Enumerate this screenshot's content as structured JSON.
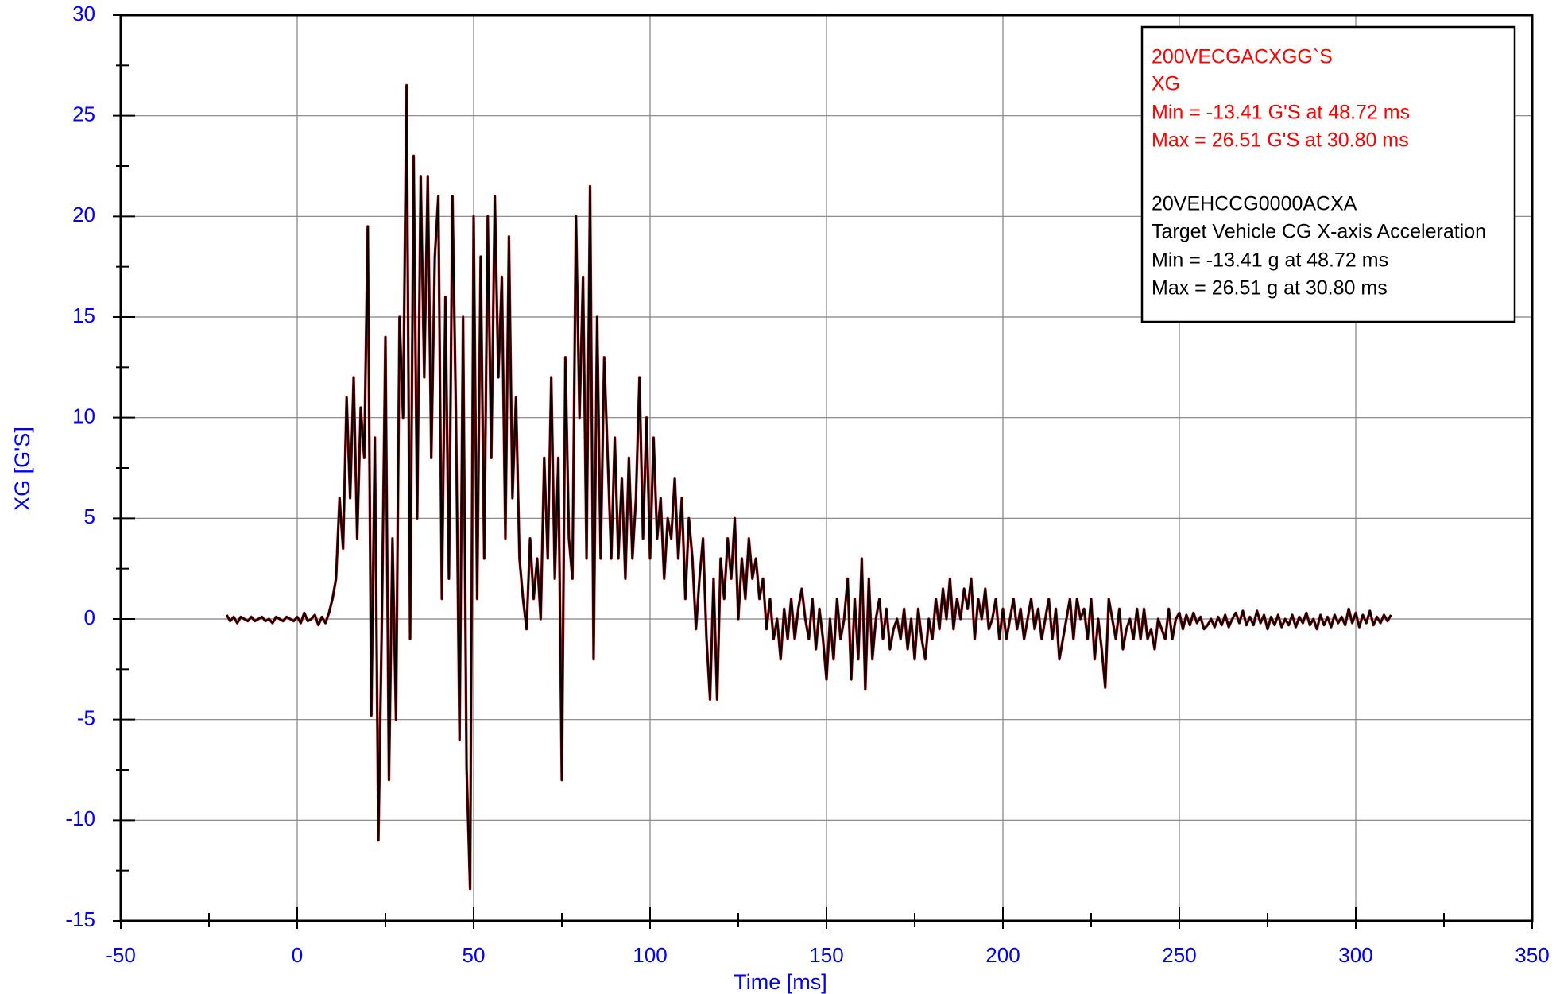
{
  "chart_data": {
    "type": "line",
    "xlabel": "Time [ms]",
    "ylabel": "XG  [G'S]",
    "xlim": [
      -50,
      350
    ],
    "ylim": [
      -15,
      30
    ],
    "xticks": [
      -50,
      0,
      50,
      100,
      150,
      200,
      250,
      300,
      350
    ],
    "yticks": [
      -15,
      -10,
      -5,
      0,
      5,
      10,
      15,
      20,
      25,
      30
    ],
    "xminorticks": [
      -25,
      25,
      75,
      125,
      175,
      225,
      275,
      325
    ],
    "yminorticks": [
      -12.5,
      -7.5,
      -2.5,
      2.5,
      7.5,
      12.5,
      17.5,
      22.5,
      27.5
    ],
    "grid": true,
    "x": [
      -20,
      -19,
      -18,
      -17,
      -16,
      -15,
      -14,
      -13,
      -12,
      -11,
      -10,
      -9,
      -8,
      -7,
      -6,
      -5,
      -4,
      -3,
      -2,
      -1,
      0,
      1,
      2,
      3,
      4,
      5,
      6,
      7,
      8,
      9,
      10,
      11,
      12,
      13,
      14,
      15,
      16,
      17,
      18,
      19,
      20,
      21,
      22,
      23,
      24,
      25,
      26,
      27,
      28,
      29,
      30,
      31,
      32,
      33,
      34,
      35,
      36,
      37,
      38,
      39,
      40,
      41,
      42,
      43,
      44,
      45,
      46,
      47,
      48,
      49,
      50,
      51,
      52,
      53,
      54,
      55,
      56,
      57,
      58,
      59,
      60,
      61,
      62,
      63,
      64,
      65,
      66,
      67,
      68,
      69,
      70,
      71,
      72,
      73,
      74,
      75,
      76,
      77,
      78,
      79,
      80,
      81,
      82,
      83,
      84,
      85,
      86,
      87,
      88,
      89,
      90,
      91,
      92,
      93,
      94,
      95,
      96,
      97,
      98,
      99,
      100,
      101,
      102,
      103,
      104,
      105,
      106,
      107,
      108,
      109,
      110,
      111,
      112,
      113,
      114,
      115,
      116,
      117,
      118,
      119,
      120,
      121,
      122,
      123,
      124,
      125,
      126,
      127,
      128,
      129,
      130,
      131,
      132,
      133,
      134,
      135,
      136,
      137,
      138,
      139,
      140,
      141,
      142,
      143,
      144,
      145,
      146,
      147,
      148,
      149,
      150,
      151,
      152,
      153,
      154,
      155,
      156,
      157,
      158,
      159,
      160,
      161,
      162,
      163,
      164,
      165,
      166,
      167,
      168,
      169,
      170,
      171,
      172,
      173,
      174,
      175,
      176,
      177,
      178,
      179,
      180,
      181,
      182,
      183,
      184,
      185,
      186,
      187,
      188,
      189,
      190,
      191,
      192,
      193,
      194,
      195,
      196,
      197,
      198,
      199,
      200,
      201,
      202,
      203,
      204,
      205,
      206,
      207,
      208,
      209,
      210,
      211,
      212,
      213,
      214,
      215,
      216,
      217,
      218,
      219,
      220,
      221,
      222,
      223,
      224,
      225,
      226,
      227,
      228,
      229,
      230,
      231,
      232,
      233,
      234,
      235,
      236,
      237,
      238,
      239,
      240,
      241,
      242,
      243,
      244,
      245,
      246,
      247,
      248,
      249,
      250,
      251,
      252,
      253,
      254,
      255,
      256,
      257,
      258,
      259,
      260,
      261,
      262,
      263,
      264,
      265,
      266,
      267,
      268,
      269,
      270,
      271,
      272,
      273,
      274,
      275,
      276,
      277,
      278,
      279,
      280,
      281,
      282,
      283,
      284,
      285,
      286,
      287,
      288,
      289,
      290,
      291,
      292,
      293,
      294,
      295,
      296,
      297,
      298,
      299,
      300,
      301,
      302,
      303,
      304,
      305,
      306,
      307,
      308,
      309,
      310
    ],
    "series": [
      {
        "name": "200VECGACXGG`S",
        "label": "XG",
        "min_text": "Min = -13.41 G'S at 48.72 ms",
        "max_text": "Max = 26.51 G'S at 30.80 ms",
        "color": "#ff0000",
        "values": [
          0.2,
          -0.1,
          0.1,
          -0.2,
          0.1,
          0,
          -0.1,
          0.1,
          -0.1,
          0,
          0.1,
          -0.1,
          0,
          -0.2,
          0.1,
          0,
          -0.1,
          0.1,
          0,
          -0.1,
          0.1,
          -0.2,
          0.3,
          -0.1,
          0,
          0.2,
          -0.3,
          0.1,
          -0.2,
          0.3,
          1,
          2,
          6,
          3.5,
          11,
          6,
          12,
          4,
          10.5,
          8,
          19.5,
          -4.8,
          9,
          -11,
          0,
          14,
          -8,
          4,
          -5,
          15,
          10,
          26.51,
          -1,
          23,
          5,
          22,
          12,
          22,
          8,
          18,
          21,
          1,
          16,
          2,
          21,
          10,
          -6,
          15,
          -7.4,
          -13.41,
          20,
          1,
          18,
          3,
          20,
          8,
          21,
          12,
          17,
          4,
          19,
          6,
          11,
          3,
          1,
          -0.5,
          4,
          1,
          3,
          0,
          8,
          3,
          12,
          2,
          8,
          -8,
          13,
          4,
          2,
          20,
          10,
          17,
          3,
          21.5,
          -2,
          15,
          3,
          13,
          8,
          3,
          9,
          3,
          7,
          2,
          8,
          3,
          6,
          12,
          4,
          10,
          3,
          9,
          4,
          6,
          2,
          5,
          4,
          7,
          3,
          6,
          1,
          5,
          3,
          -0.5,
          2,
          4,
          -1,
          -4,
          2,
          -4,
          3,
          1,
          4,
          2,
          5,
          0,
          3,
          1,
          4,
          2,
          3,
          1,
          2,
          -0.5,
          1,
          -1,
          0,
          -2,
          0.5,
          -1,
          1,
          -1,
          0.5,
          1.5,
          0,
          -1,
          1,
          -1.5,
          0.5,
          -1,
          -3,
          0,
          -2,
          1,
          -1,
          0,
          2,
          -3,
          1,
          -2,
          3,
          -3.5,
          2,
          -2,
          0,
          1,
          -1,
          0.5,
          -1.5,
          -0.5,
          0,
          -1,
          0.5,
          -1.5,
          0,
          -2,
          0.5,
          -1,
          -2,
          0,
          -1,
          1,
          -0.5,
          1.5,
          0,
          2,
          -0.5,
          1,
          0,
          1.5,
          0.5,
          2,
          -1,
          1,
          0,
          1.5,
          -0.5,
          0,
          1,
          -1,
          0.5,
          -1,
          0,
          1,
          -0.5,
          0.5,
          -1,
          0,
          1,
          -0.5,
          0.5,
          -1,
          0,
          1,
          -1,
          0.5,
          -2,
          -1,
          0,
          1,
          -1,
          1,
          0,
          0.5,
          -1,
          1,
          -2,
          0,
          -1.5,
          -3.4,
          1,
          0,
          -1,
          0.5,
          -1.5,
          -0.5,
          0,
          -1,
          0.5,
          -1,
          0.5,
          -1,
          -0.5,
          -1.5,
          0,
          -0.5,
          -1,
          0.5,
          -1,
          0,
          0.3,
          -0.5,
          0.2,
          -0.3,
          0.3,
          -0.2,
          0.1,
          -0.5,
          -0.3,
          0,
          -0.4,
          0.1,
          -0.3,
          0.2,
          -0.4,
          0,
          0.3,
          -0.2,
          0.4,
          -0.3,
          0.1,
          -0.3,
          0.4,
          -0.2,
          0.2,
          -0.5,
          0.1,
          -0.3,
          0.2,
          -0.4,
          0,
          -0.3,
          0.2,
          -0.4,
          0.1,
          -0.2,
          0.3,
          -0.3,
          0,
          -0.5,
          0.2,
          -0.3,
          0.1,
          -0.4,
          0.2,
          -0.2,
          0.1,
          -0.3,
          0.5,
          -0.2,
          0.3,
          -0.4,
          0.2,
          -0.2,
          0.4,
          -0.3,
          0.1,
          -0.2,
          0.2,
          -0.1,
          0.2
        ]
      },
      {
        "name": "20VEHCCG0000ACXA",
        "label": "Target Vehicle CG X-axis Acceleration",
        "min_text": "Min = -13.41 g at 48.72 ms",
        "max_text": "Max = 26.51 g at 30.80 ms",
        "color": "#000000",
        "values": [
          0.2,
          -0.1,
          0.1,
          -0.2,
          0.1,
          0,
          -0.1,
          0.1,
          -0.1,
          0,
          0.1,
          -0.1,
          0,
          -0.2,
          0.1,
          0,
          -0.1,
          0.1,
          0,
          -0.1,
          0.1,
          -0.2,
          0.3,
          -0.1,
          0,
          0.2,
          -0.3,
          0.1,
          -0.2,
          0.3,
          1,
          2,
          6,
          3.5,
          11,
          6,
          12,
          4,
          10.5,
          8,
          19.5,
          -4.8,
          9,
          -11,
          0,
          14,
          -8,
          4,
          -5,
          15,
          10,
          26.51,
          -1,
          23,
          5,
          22,
          12,
          22,
          8,
          18,
          21,
          1,
          16,
          2,
          21,
          10,
          -6,
          15,
          -7.4,
          -13.41,
          20,
          1,
          18,
          3,
          20,
          8,
          21,
          12,
          17,
          4,
          19,
          6,
          11,
          3,
          1,
          -0.5,
          4,
          1,
          3,
          0,
          8,
          3,
          12,
          2,
          8,
          -8,
          13,
          4,
          2,
          20,
          10,
          17,
          3,
          21.5,
          -2,
          15,
          3,
          13,
          8,
          3,
          9,
          3,
          7,
          2,
          8,
          3,
          6,
          12,
          4,
          10,
          3,
          9,
          4,
          6,
          2,
          5,
          4,
          7,
          3,
          6,
          1,
          5,
          3,
          -0.5,
          2,
          4,
          -1,
          -4,
          2,
          -4,
          3,
          1,
          4,
          2,
          5,
          0,
          3,
          1,
          4,
          2,
          3,
          1,
          2,
          -0.5,
          1,
          -1,
          0,
          -2,
          0.5,
          -1,
          1,
          -1,
          0.5,
          1.5,
          0,
          -1,
          1,
          -1.5,
          0.5,
          -1,
          -3,
          0,
          -2,
          1,
          -1,
          0,
          2,
          -3,
          1,
          -2,
          3,
          -3.5,
          2,
          -2,
          0,
          1,
          -1,
          0.5,
          -1.5,
          -0.5,
          0,
          -1,
          0.5,
          -1.5,
          0,
          -2,
          0.5,
          -1,
          -2,
          0,
          -1,
          1,
          -0.5,
          1.5,
          0,
          2,
          -0.5,
          1,
          0,
          1.5,
          0.5,
          2,
          -1,
          1,
          0,
          1.5,
          -0.5,
          0,
          1,
          -1,
          0.5,
          -1,
          0,
          1,
          -0.5,
          0.5,
          -1,
          0,
          1,
          -0.5,
          0.5,
          -1,
          0,
          1,
          -1,
          0.5,
          -2,
          -1,
          0,
          1,
          -1,
          1,
          0,
          0.5,
          -1,
          1,
          -2,
          0,
          -1.5,
          -3.4,
          1,
          0,
          -1,
          0.5,
          -1.5,
          -0.5,
          0,
          -1,
          0.5,
          -1,
          0.5,
          -1,
          -0.5,
          -1.5,
          0,
          -0.5,
          -1,
          0.5,
          -1,
          0,
          0.3,
          -0.5,
          0.2,
          -0.3,
          0.3,
          -0.2,
          0.1,
          -0.5,
          -0.3,
          0,
          -0.4,
          0.1,
          -0.3,
          0.2,
          -0.4,
          0,
          0.3,
          -0.2,
          0.4,
          -0.3,
          0.1,
          -0.3,
          0.4,
          -0.2,
          0.2,
          -0.5,
          0.1,
          -0.3,
          0.2,
          -0.4,
          0,
          -0.3,
          0.2,
          -0.4,
          0.1,
          -0.2,
          0.3,
          -0.3,
          0,
          -0.5,
          0.2,
          -0.3,
          0.1,
          -0.4,
          0.2,
          -0.2,
          0.1,
          -0.3,
          0.5,
          -0.2,
          0.3,
          -0.4,
          0.2,
          -0.2,
          0.4,
          -0.3,
          0.1,
          -0.2,
          0.2,
          -0.1,
          0.2
        ]
      }
    ]
  }
}
